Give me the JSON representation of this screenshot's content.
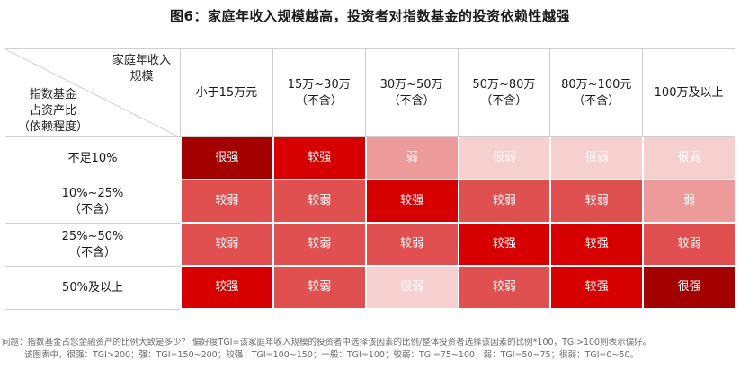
{
  "title": "图6：家庭年收入规模越高，投资者对指数基金的投资依赖性越强",
  "corner": {
    "top": "家庭年收入\n规模",
    "bottom": "指数基金\n占资产比\n（依赖程度）"
  },
  "columns": [
    "小于15万元",
    "15万~30万\n（不含）",
    "30万~50万\n（不含）",
    "50万~80万\n（不含）",
    "80万~100元\n（不含）",
    "100万及以上"
  ],
  "rows": [
    {
      "label": "不足10%",
      "cells": [
        "很强",
        "较强",
        "弱",
        "很弱",
        "很弱",
        "很弱"
      ]
    },
    {
      "label": "10%~25%\n（不含）",
      "cells": [
        "较弱",
        "较弱",
        "较强",
        "较弱",
        "较弱",
        "弱"
      ]
    },
    {
      "label": "25%~50%\n（不含）",
      "cells": [
        "较弱",
        "较弱",
        "较弱",
        "较强",
        "较强",
        "较弱"
      ]
    },
    {
      "label": "50%及以上",
      "cells": [
        "较强",
        "较弱",
        "很弱",
        "较弱",
        "较强",
        "很强"
      ]
    }
  ],
  "levels": {
    "很强": "#a30000",
    "较强": "#d60000",
    "较弱": "#e05050",
    "弱": "#ec9a9a",
    "很弱": "#f6cfcf"
  },
  "note": {
    "line1": "问题：指数基金占您金融资产的比例大致是多少？ 偏好度TGI=该家庭年收入规模的投资者中选择该因素的比例/整体投资者选择该因素的比例*100，TGI>100则表示偏好。",
    "line2": "该图表中，很强：TGI>200；强：TGI=150~200；较强：TGI=100~150；一般：TGI=100；较弱：TGI=75~100；弱：TGI=50~75；很弱：TGI=0~50。"
  }
}
